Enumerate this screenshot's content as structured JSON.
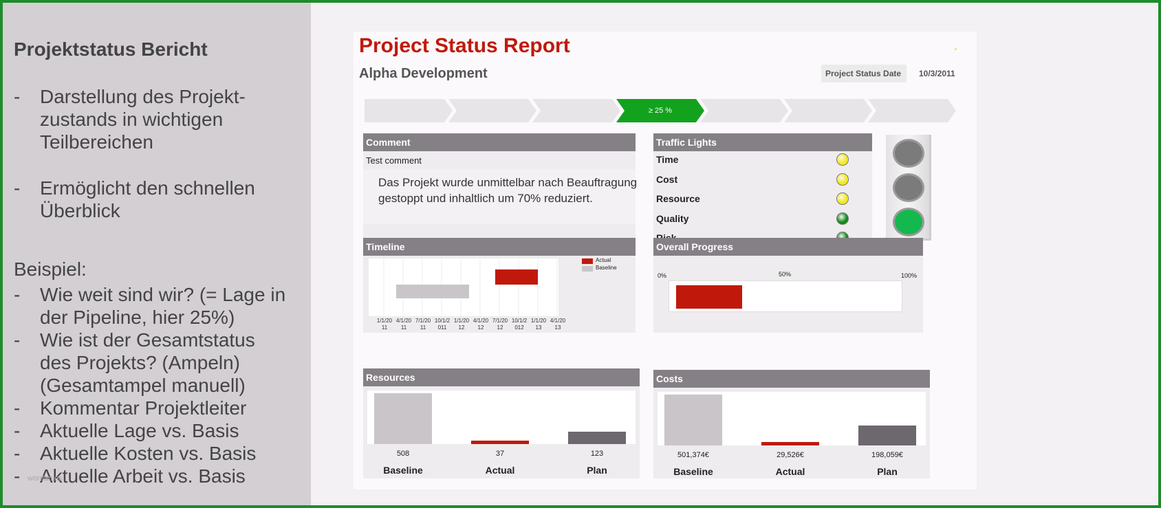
{
  "left_panel": {
    "heading": "Projektstatus Bericht",
    "bullets": [
      {
        "lines": [
          "Darstellung des Projekt-",
          "zustands in wichtigen",
          "Teilbereichen"
        ]
      },
      {
        "lines": [
          "Ermöglicht den schnellen",
          "Überblick"
        ]
      }
    ],
    "example_heading": "Beispiel:",
    "example_bullets": [
      {
        "lines": [
          "Wie weit sind wir? (= Lage in",
          "der Pipeline, hier 25%)"
        ]
      },
      {
        "lines": [
          "Wie ist der Gesamtstatus",
          "des Projekts? (Ampeln)",
          "(Gesamtampel manuell)"
        ]
      },
      {
        "lines": [
          "Kommentar Projektleiter"
        ]
      },
      {
        "lines": [
          "Aktuelle Lage vs. Basis"
        ]
      },
      {
        "lines": [
          "Aktuelle Kosten vs. Basis"
        ]
      },
      {
        "lines": [
          "Aktuelle Arbeit vs. Basis"
        ]
      }
    ],
    "dash": "-",
    "watermark": "wordan.es"
  },
  "report": {
    "title": "Project Status Report",
    "subtitle": "Alpha Development",
    "status_date_label": "Project Status Date",
    "status_date": "10/3/2011",
    "pipeline": {
      "stages": 7,
      "active_index": 3,
      "active_label": "≥ 25 %"
    },
    "comment": {
      "header": "Comment",
      "sub": "Test comment",
      "body": "Das Projekt wurde unmittelbar nach Beauftragung gestoppt und inhaltlich um 70% reduziert."
    },
    "traffic_lights": {
      "header": "Traffic Lights",
      "rows": [
        {
          "label": "Time",
          "color": "#f2ea1c"
        },
        {
          "label": "Cost",
          "color": "#f2ea1c"
        },
        {
          "label": "Resource",
          "color": "#f2ea1c"
        },
        {
          "label": "Quality",
          "color": "#0f8a17"
        },
        {
          "label": "Risk",
          "color": "#0f8a17"
        }
      ],
      "overall_lamps": [
        "#7b7b7b",
        "#7b7b7b",
        "#14b84e"
      ]
    },
    "timeline": {
      "header": "Timeline",
      "legend": [
        "Actual",
        "Baseline"
      ],
      "ticks": [
        [
          "1/1/20",
          "11"
        ],
        [
          "4/1/20",
          "11"
        ],
        [
          "7/1/20",
          "11"
        ],
        [
          "10/1/2",
          "011"
        ],
        [
          "1/1/20",
          "12"
        ],
        [
          "4/1/20",
          "12"
        ],
        [
          "7/1/20",
          "12"
        ],
        [
          "10/1/2",
          "012"
        ],
        [
          "1/1/20",
          "13"
        ],
        [
          "4/1/20",
          "13"
        ]
      ]
    },
    "overall_progress": {
      "header": "Overall Progress",
      "labels": [
        "0%",
        "50%",
        "100%"
      ],
      "value": 0.3
    },
    "resources": {
      "header": "Resources",
      "bars": [
        {
          "label": "Baseline",
          "value": 508,
          "display": "508",
          "color": "#c9c5c9"
        },
        {
          "label": "Actual",
          "value": 37,
          "display": "37",
          "color": "#c0190c"
        },
        {
          "label": "Plan",
          "value": 123,
          "display": "123",
          "color": "#6d686d"
        }
      ]
    },
    "costs": {
      "header": "Costs",
      "bars": [
        {
          "label": "Baseline",
          "value": 501374,
          "display": "501,374€",
          "color": "#c9c5c9"
        },
        {
          "label": "Actual",
          "value": 29526,
          "display": "29,526€",
          "color": "#c0190c"
        },
        {
          "label": "Plan",
          "value": 198059,
          "display": "198,059€",
          "color": "#6d686d"
        }
      ]
    },
    "colors": {
      "title_red": "#c0190c",
      "header_gray": "#858085",
      "pipeline_green": "#12a21e",
      "frame_green": "#1e8c2a"
    }
  }
}
